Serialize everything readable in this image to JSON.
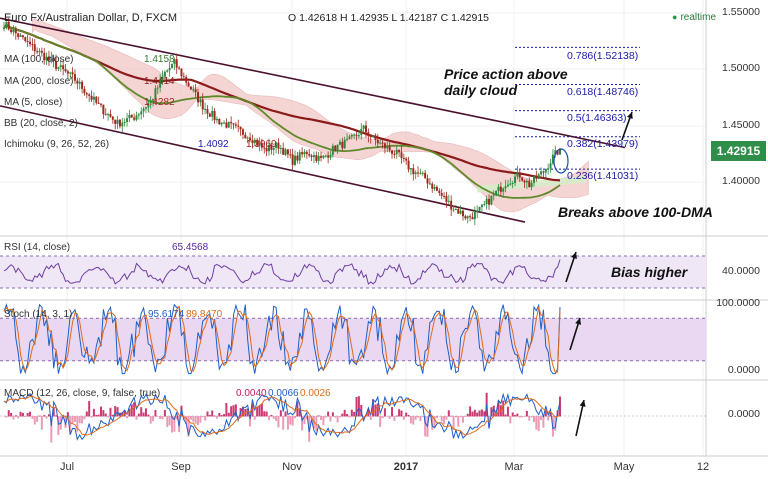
{
  "header": {
    "symbol": "Euro Fx/Australian Dollar, D, FXCM",
    "ohlc": "O 1.42618  H 1.42935  L 1.42187  C 1.42915",
    "realtime": "realtime"
  },
  "overlay_labels": {
    "ma100": "MA (100, close)",
    "ma100_val": "1.4158",
    "ma200": "MA (200, close)",
    "ma200_val": "1.4414",
    "ma5": "MA (5, close)",
    "ma5_val": "1.4282",
    "bb": "BB (20, close, 2)",
    "ichimoku": "Ichimoku (9, 26, 52, 26)",
    "ich_v1": "1.4092",
    "ich_v2": "1.3969"
  },
  "last_price": "1.42915",
  "annotations": {
    "cloud_line1": "Price action above",
    "cloud_line2": "daily cloud",
    "dma": "Breaks above 100-DMA",
    "bias": "Bias higher"
  },
  "indicators": {
    "rsi_label": "RSI (14, close)",
    "rsi_value": "65.4568",
    "stoch_label": "Stoch (14, 3, 1)",
    "stoch_k": "95.6174",
    "stoch_d": "89.8470",
    "macd_label": "MACD (12, 26, close, 9, false, true)",
    "macd_v1": "0.0040",
    "macd_v2": "0.0066",
    "macd_v3": "0.0026"
  },
  "colors": {
    "up": "#2e8b3e",
    "down": "#a0291f",
    "ma100": "#5f8a2a",
    "ma200": "#8b1a1a",
    "cloud": "#f2c6c6",
    "cloud_green": "#d6ecc9",
    "fib": "#1a1aa8",
    "channel": "#4a1030"
  },
  "chart_data": {
    "type": "candlestick",
    "symbol": "EUR/AUD",
    "timeframe": "D",
    "x_tick_labels": [
      "Jul",
      "Sep",
      "Nov",
      "2017",
      "Mar",
      "May",
      "12"
    ],
    "price_axis": {
      "ticks": [
        "1.55000",
        "1.50000",
        "1.45000",
        "1.40000"
      ],
      "ylim": [
        1.352,
        1.56
      ]
    },
    "fib_levels": [
      {
        "label": "0.786(1.52138)",
        "value": 1.52138
      },
      {
        "label": "0.618(1.48746)",
        "value": 1.48746
      },
      {
        "label": "0.5(1.46363)",
        "value": 1.46363
      },
      {
        "label": "0.382(1.43979)",
        "value": 1.43979
      },
      {
        "label": "0.236(1.41031)",
        "value": 1.41031
      }
    ],
    "price_anchors": [
      [
        0,
        1.543
      ],
      [
        10,
        1.525
      ],
      [
        20,
        1.508
      ],
      [
        30,
        1.492
      ],
      [
        40,
        1.468
      ],
      [
        48,
        1.452
      ],
      [
        55,
        1.458
      ],
      [
        62,
        1.472
      ],
      [
        68,
        1.498
      ],
      [
        72,
        1.507
      ],
      [
        78,
        1.487
      ],
      [
        84,
        1.468
      ],
      [
        90,
        1.455
      ],
      [
        97,
        1.448
      ],
      [
        104,
        1.44
      ],
      [
        110,
        1.428
      ],
      [
        116,
        1.432
      ],
      [
        122,
        1.418
      ],
      [
        128,
        1.426
      ],
      [
        134,
        1.419
      ],
      [
        140,
        1.43
      ],
      [
        146,
        1.436
      ],
      [
        152,
        1.447
      ],
      [
        156,
        1.438
      ],
      [
        160,
        1.432
      ],
      [
        166,
        1.424
      ],
      [
        172,
        1.41
      ],
      [
        178,
        1.402
      ],
      [
        184,
        1.388
      ],
      [
        190,
        1.375
      ],
      [
        196,
        1.366
      ],
      [
        200,
        1.37
      ],
      [
        206,
        1.384
      ],
      [
        212,
        1.398
      ],
      [
        218,
        1.405
      ],
      [
        222,
        1.396
      ],
      [
        228,
        1.408
      ],
      [
        232,
        1.421
      ],
      [
        235,
        1.429
      ]
    ],
    "rsi": {
      "ticks": [
        "40.0000"
      ],
      "last": 65.4568,
      "bands": [
        70,
        30
      ]
    },
    "stoch": {
      "ticks": [
        "100.0000",
        "0.0000"
      ],
      "k_last": 95.6174,
      "d_last": 89.847,
      "bands": [
        80,
        20
      ]
    },
    "macd": {
      "ticks": [
        "0.0000"
      ],
      "macd": 0.004,
      "signal": 0.0066,
      "hist": 0.0026
    }
  }
}
